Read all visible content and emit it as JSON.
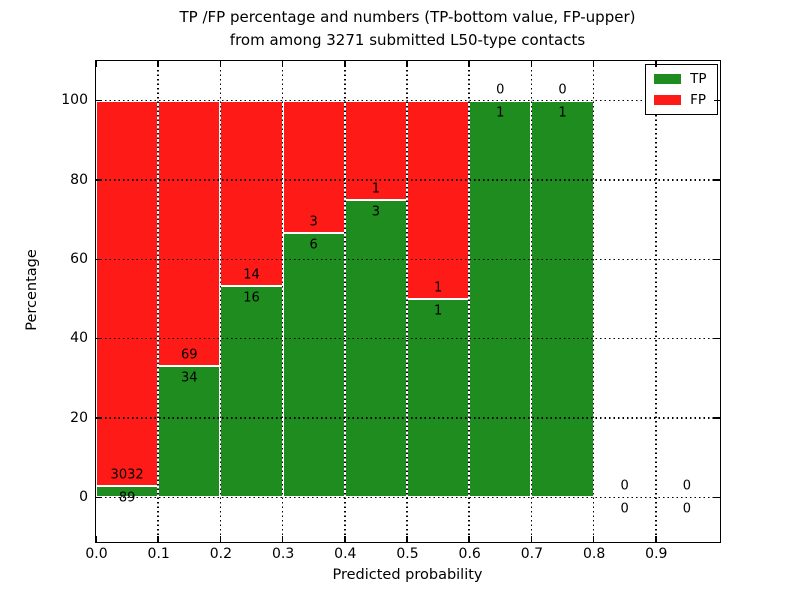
{
  "title": {
    "line1": "TP /FP percentage and numbers (TP-bottom value, FP-upper)",
    "line2": "from among 3271 submitted L50-type contacts"
  },
  "chart_data": {
    "type": "bar",
    "stacked": true,
    "normalization": "each bin scaled to TP+FP = 100%",
    "total_contacts": 3271,
    "bins": [
      "0.0-0.1",
      "0.1-0.2",
      "0.2-0.3",
      "0.3-0.4",
      "0.4-0.5",
      "0.5-0.6",
      "0.6-0.7",
      "0.7-0.8",
      "0.8-0.9",
      "0.9-1.0"
    ],
    "series": [
      {
        "name": "TP",
        "color": "#1e8c1e",
        "values": [
          89,
          34,
          16,
          6,
          3,
          1,
          1,
          1,
          0,
          0
        ]
      },
      {
        "name": "FP",
        "color": "#fe1b17",
        "values": [
          3032,
          69,
          14,
          3,
          1,
          1,
          0,
          0,
          0,
          0
        ]
      }
    ],
    "xlabel": "Predicted probability",
    "ylabel": "Percentage",
    "x_tick_values": [
      0.0,
      0.1,
      0.2,
      0.3,
      0.4,
      0.5,
      0.6,
      0.7,
      0.8,
      0.9
    ],
    "x_tick_labels": [
      "0.0",
      "0.1",
      "0.2",
      "0.3",
      "0.4",
      "0.5",
      "0.6",
      "0.7",
      "0.8",
      "0.9"
    ],
    "y_tick_values": [
      0,
      20,
      40,
      60,
      80,
      100
    ],
    "y_tick_labels": [
      "0",
      "20",
      "40",
      "60",
      "80",
      "100"
    ],
    "xlim": [
      0.0,
      1.0
    ],
    "ylim": [
      -11,
      110
    ],
    "grid": "dotted",
    "legend_position": "upper right"
  },
  "colors": {
    "tp": "#1e8c1e",
    "fp": "#fe1b17",
    "grid": "#000000",
    "frame": "#000000",
    "background": "#ffffff"
  }
}
